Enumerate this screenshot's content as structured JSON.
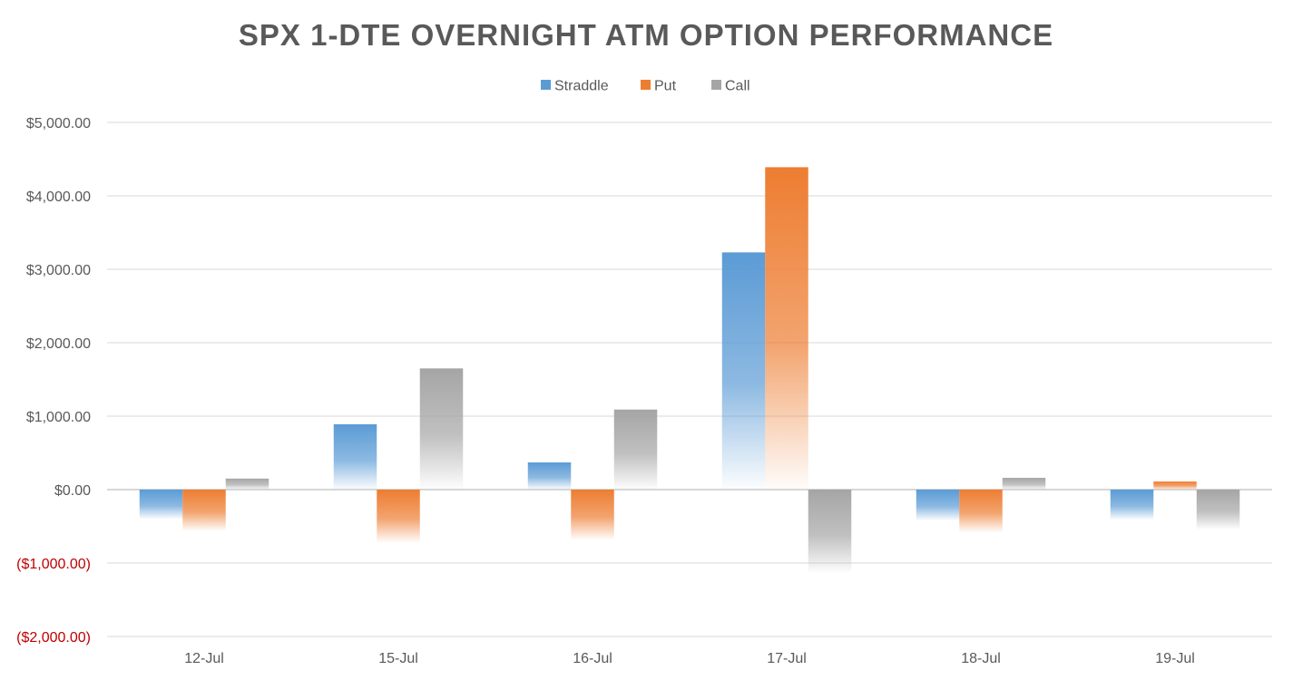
{
  "chart_data": {
    "type": "bar",
    "title": "SPX 1-DTE OVERNIGHT ATM OPTION PERFORMANCE",
    "xlabel": "",
    "ylabel": "",
    "categories": [
      "12-Jul",
      "15-Jul",
      "16-Jul",
      "17-Jul",
      "18-Jul",
      "19-Jul"
    ],
    "series": [
      {
        "name": "Straddle",
        "values": [
          -400,
          890,
          370,
          3230,
          -420,
          -410
        ],
        "color": "#5B9BD5"
      },
      {
        "name": "Put",
        "values": [
          -560,
          -720,
          -680,
          4390,
          -580,
          110
        ],
        "color": "#ED7D31"
      },
      {
        "name": "Call",
        "values": [
          150,
          1650,
          1090,
          -1130,
          160,
          -540
        ],
        "color": "#A5A5A5"
      }
    ],
    "ylim": [
      -2000,
      5000
    ],
    "yticks": [
      5000,
      4000,
      3000,
      2000,
      1000,
      0,
      -1000,
      -2000
    ],
    "ytick_labels": [
      "$5,000.00",
      "$4,000.00",
      "$3,000.00",
      "$2,000.00",
      "$1,000.00",
      "$0.00",
      "($1,000.00)",
      "($2,000.00)"
    ],
    "negative_tick_color": "#C00000",
    "positive_tick_color": "#595959",
    "title_color": "#595959",
    "gridlines": true,
    "gridline_color": "#D9D9D9",
    "legend_position": "top-center",
    "bar_style": "gradient fill fading toward zero"
  }
}
